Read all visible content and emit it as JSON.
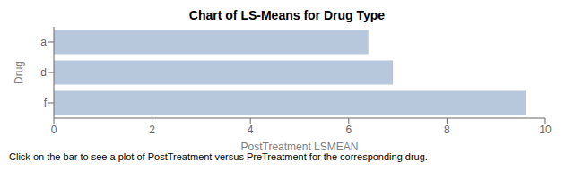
{
  "chart_data": {
    "type": "bar",
    "orientation": "horizontal",
    "title": "Chart of LS-Means for Drug Type",
    "categories": [
      "f",
      "d",
      "a"
    ],
    "values": [
      9.6,
      6.9,
      6.4
    ],
    "color": "#b8c8dc",
    "xlabel": "PostTreatment LSMEAN",
    "ylabel": "Drug",
    "xlim": [
      0,
      10
    ],
    "xticks": [
      0,
      2,
      4,
      6,
      8,
      10
    ],
    "grid": false,
    "footnote": "Click on the bar to see a plot of PostTreatment versus PreTreatment for the corresponding drug."
  }
}
